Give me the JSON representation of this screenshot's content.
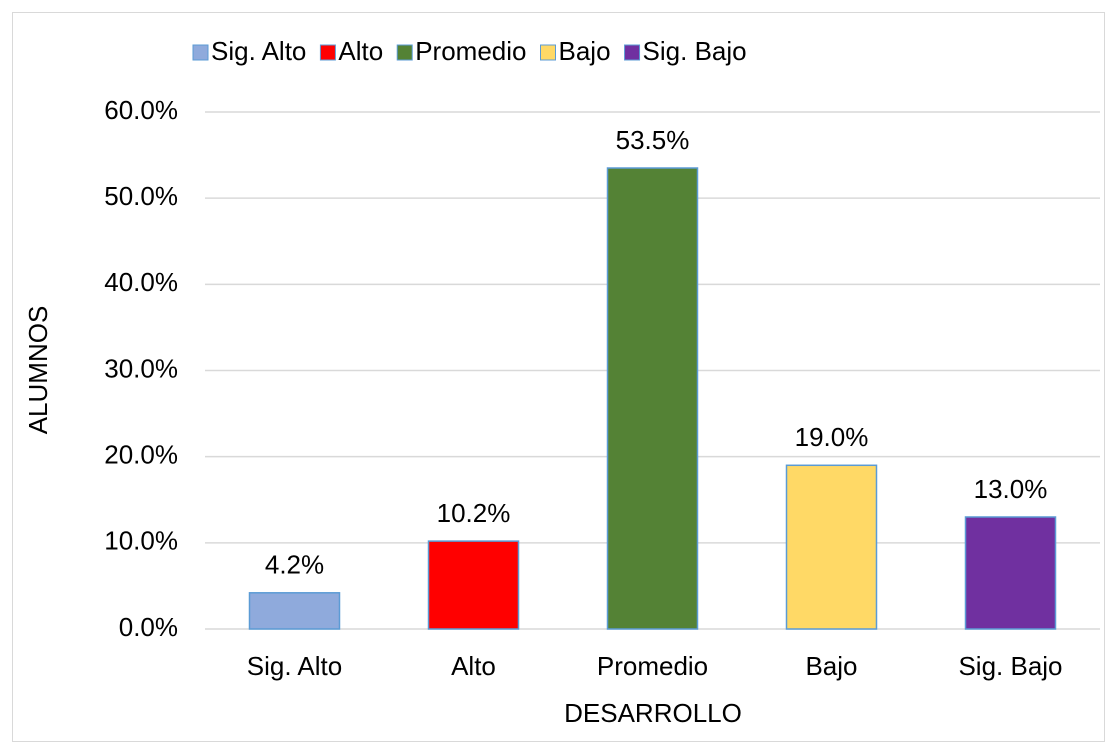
{
  "chart_data": {
    "type": "bar",
    "categories": [
      "Sig. Alto",
      "Alto",
      "Promedio",
      "Bajo",
      "Sig. Bajo"
    ],
    "values": [
      4.2,
      10.2,
      53.5,
      19.0,
      13.0
    ],
    "value_labels": [
      "4.2%",
      "10.2%",
      "53.5%",
      "19.0%",
      "13.0%"
    ],
    "colors": [
      "#8faadc",
      "#ff0000",
      "#548235",
      "#ffd966",
      "#7030a0"
    ],
    "x_label": "DESARROLLO",
    "y_label": "ALUMNOS",
    "ylim": [
      0,
      60
    ],
    "yticks": [
      {
        "value": 0,
        "label": "0.0%"
      },
      {
        "value": 10,
        "label": "10.0%"
      },
      {
        "value": 20,
        "label": "20.0%"
      },
      {
        "value": 30,
        "label": "30.0%"
      },
      {
        "value": 40,
        "label": "40.0%"
      },
      {
        "value": 50,
        "label": "50.0%"
      },
      {
        "value": 60,
        "label": "60.0%"
      }
    ],
    "grid": true,
    "legend": "top"
  }
}
